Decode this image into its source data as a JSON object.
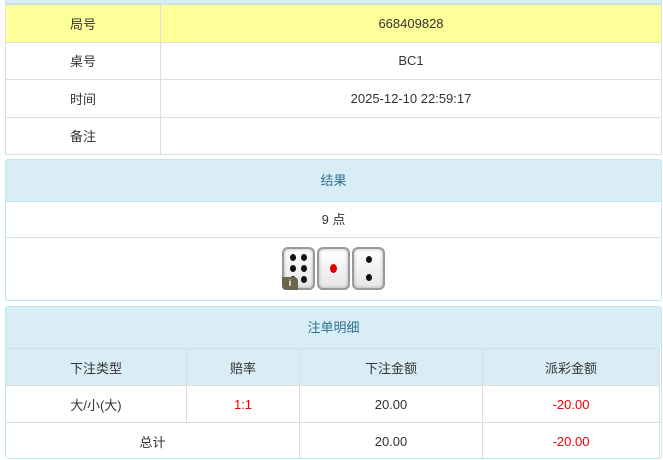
{
  "info": {
    "rows": [
      {
        "label": "局号",
        "value": "668409828"
      },
      {
        "label": "桌号",
        "value": "BC1"
      },
      {
        "label": "时间",
        "value": "2025-12-10 22:59:17"
      },
      {
        "label": "备注",
        "value": ""
      }
    ]
  },
  "result": {
    "title": "结果",
    "points": "9 点",
    "dice": [
      6,
      1,
      2
    ],
    "info_badge": "i"
  },
  "bets": {
    "title": "注单明细",
    "headers": [
      "下注类型",
      "赔率",
      "下注金额",
      "派彩金额"
    ],
    "rows": [
      {
        "type": "大/小(大)",
        "odds": "1:1",
        "amount": "20.00",
        "payout": "-20.00"
      }
    ],
    "total": {
      "label": "总计",
      "amount": "20.00",
      "payout": "-20.00"
    }
  },
  "colors": {
    "highlight": "#ffff99",
    "panel_header": "#d9edf7",
    "negative": "#ee0000"
  }
}
